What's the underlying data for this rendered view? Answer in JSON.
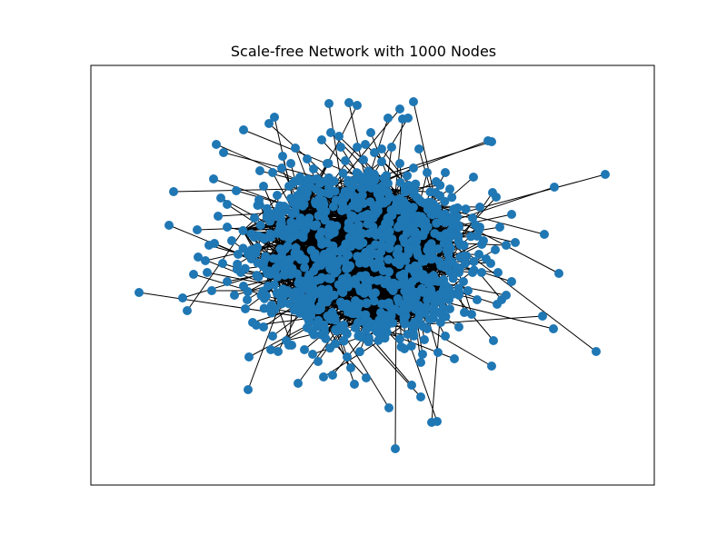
{
  "title": "Scale-free Network with 1000 Nodes",
  "colors": {
    "node": "#1f77b4",
    "edge": "#000000",
    "frame": "#000000",
    "background": "#ffffff"
  },
  "graph": {
    "type": "network",
    "node_count": 1000,
    "axes_visible": false
  }
}
